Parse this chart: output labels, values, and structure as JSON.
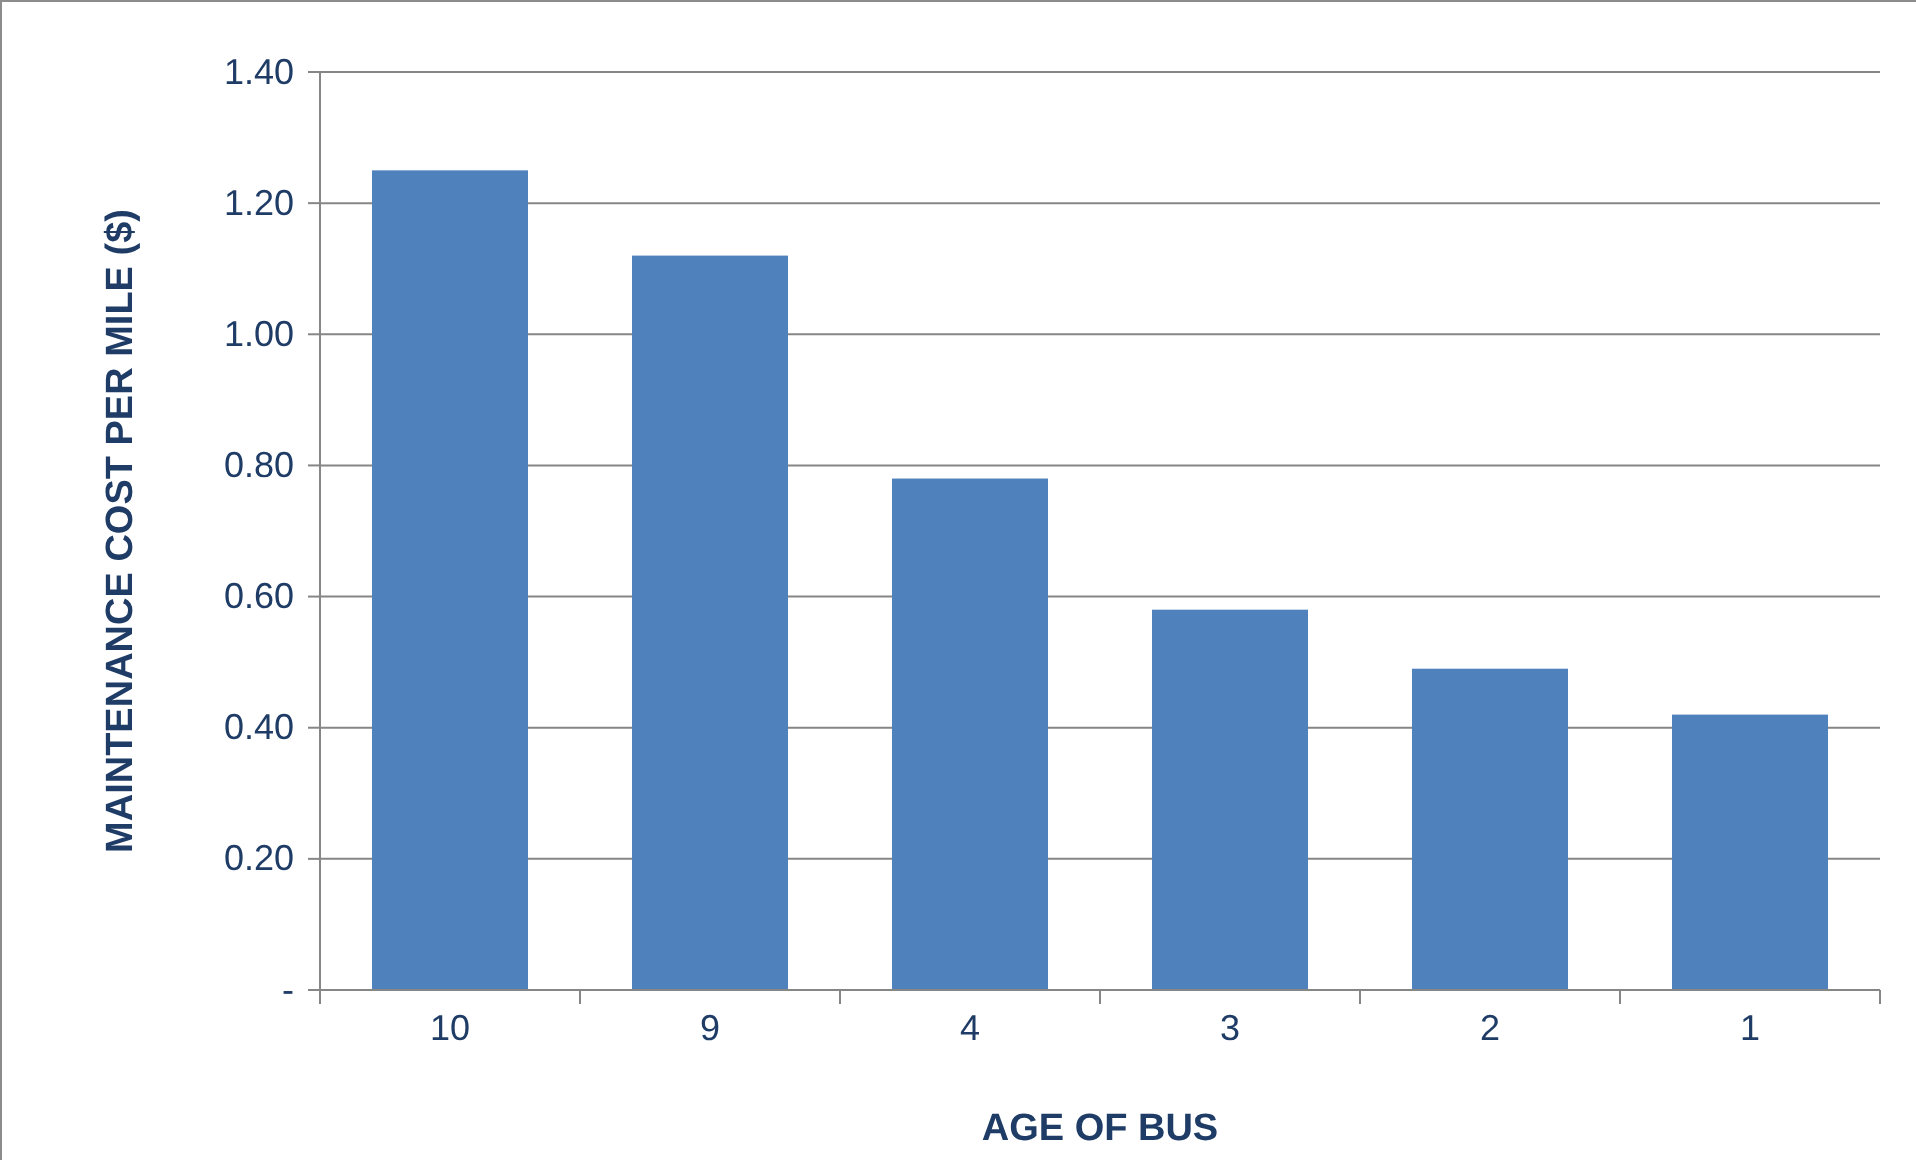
{
  "chart_data": {
    "type": "bar",
    "xlabel": "AGE OF BUS",
    "ylabel": "MAINTENANCE COST PER MILE ($)",
    "categories": [
      "10",
      "9",
      "4",
      "3",
      "2",
      "1"
    ],
    "values": [
      1.25,
      1.12,
      0.78,
      0.58,
      0.49,
      0.42
    ],
    "color": "#4f81bd",
    "ylim": [
      0,
      1.4
    ],
    "yticks": [
      {
        "value": 0,
        "label": "-"
      },
      {
        "value": 0.2,
        "label": "0.20"
      },
      {
        "value": 0.4,
        "label": "0.40"
      },
      {
        "value": 0.6,
        "label": "0.60"
      },
      {
        "value": 0.8,
        "label": "0.80"
      },
      {
        "value": 1.0,
        "label": "1.00"
      },
      {
        "value": 1.2,
        "label": "1.20"
      },
      {
        "value": 1.4,
        "label": "1.40"
      }
    ],
    "grid": "y"
  }
}
